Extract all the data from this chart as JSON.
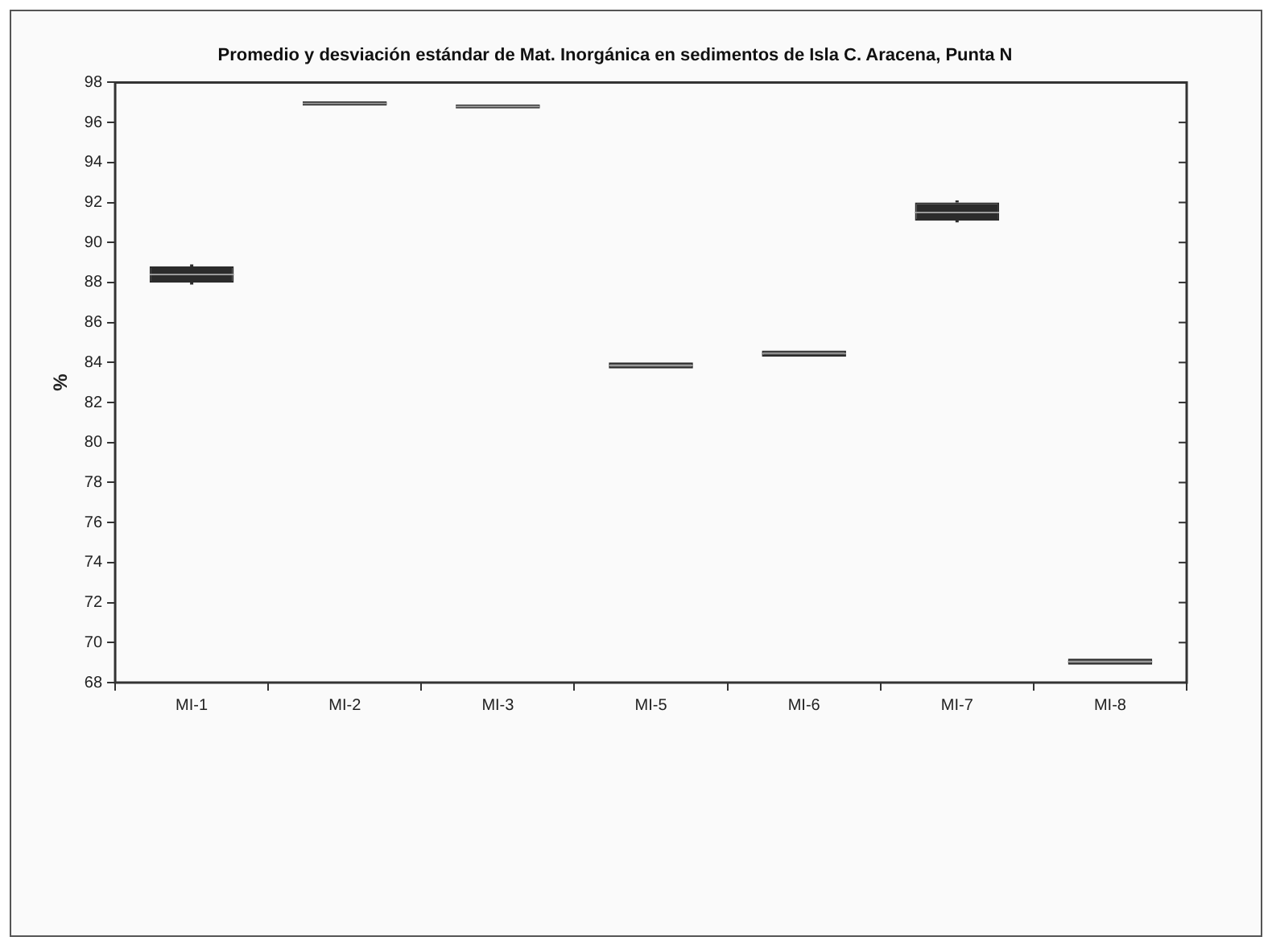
{
  "chart_data": {
    "type": "box",
    "title": "Promedio y desviación estándar de Mat. Inorgánica en sedimentos de Isla C. Aracena, Punta N",
    "ylabel": "%",
    "categories": [
      "MI-1",
      "MI-2",
      "MI-3",
      "MI-5",
      "MI-6",
      "MI-7",
      "MI-8"
    ],
    "color": "#2b2b2b",
    "boxes": [
      {
        "low": 87.9,
        "q1": 88.0,
        "median": 88.4,
        "q3": 88.8,
        "high": 88.9
      },
      {
        "low": 96.85,
        "q1": 96.85,
        "median": 96.95,
        "q3": 97.05,
        "high": 97.05
      },
      {
        "low": 96.7,
        "q1": 96.7,
        "median": 96.8,
        "q3": 96.9,
        "high": 96.9
      },
      {
        "low": 83.7,
        "q1": 83.7,
        "median": 83.85,
        "q3": 84.0,
        "high": 84.0
      },
      {
        "low": 84.3,
        "q1": 84.3,
        "median": 84.45,
        "q3": 84.6,
        "high": 84.6
      },
      {
        "low": 91.0,
        "q1": 91.1,
        "median": 91.5,
        "q3": 92.0,
        "high": 92.1
      },
      {
        "low": 68.9,
        "q1": 68.9,
        "median": 69.05,
        "q3": 69.2,
        "high": 69.2
      }
    ],
    "ylim": [
      68,
      98
    ],
    "yticks": [
      68,
      70,
      72,
      74,
      76,
      78,
      80,
      82,
      84,
      86,
      88,
      90,
      92,
      94,
      96,
      98
    ],
    "grid": false,
    "legend": false
  }
}
